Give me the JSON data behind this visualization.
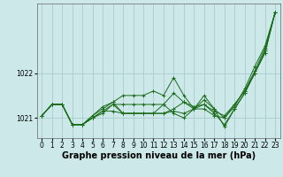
{
  "bg_color": "#cce8e8",
  "grid_color": "#aacccc",
  "line_color": "#1a6b1a",
  "marker_color": "#1a6b1a",
  "xlabel": "Graphe pression niveau de la mer (hPa)",
  "xlabel_fontsize": 7.0,
  "tick_fontsize": 5.5,
  "xlim": [
    -0.5,
    23.5
  ],
  "ylim": [
    1020.55,
    1023.55
  ],
  "yticks": [
    1021,
    1022
  ],
  "xticks": [
    0,
    1,
    2,
    3,
    4,
    5,
    6,
    7,
    8,
    9,
    10,
    11,
    12,
    13,
    14,
    15,
    16,
    17,
    18,
    19,
    20,
    21,
    22,
    23
  ],
  "series": [
    [
      1021.05,
      1021.3,
      1021.3,
      1020.85,
      1020.85,
      1021.0,
      1021.15,
      1021.15,
      1021.1,
      1021.1,
      1021.1,
      1021.1,
      1021.1,
      1021.15,
      1021.1,
      1021.2,
      1021.3,
      1021.15,
      1021.05,
      1021.3,
      1021.6,
      1022.05,
      1022.55,
      1023.35
    ],
    [
      1021.05,
      1021.3,
      1021.3,
      1020.85,
      1020.85,
      1021.05,
      1021.25,
      1021.35,
      1021.5,
      1021.5,
      1021.5,
      1021.6,
      1021.5,
      1021.9,
      1021.5,
      1021.2,
      1021.2,
      1021.05,
      1021.0,
      1021.25,
      1021.65,
      1022.15,
      1022.6,
      1023.35
    ],
    [
      1021.05,
      1021.3,
      1021.3,
      1020.85,
      1020.85,
      1021.05,
      1021.2,
      1021.35,
      1021.1,
      1021.1,
      1021.1,
      1021.1,
      1021.1,
      1021.2,
      1021.35,
      1021.2,
      1021.4,
      1021.2,
      1021.0,
      1021.3,
      1021.6,
      1022.0,
      1022.45,
      1023.35
    ],
    [
      1021.05,
      1021.3,
      1021.3,
      1020.85,
      1020.85,
      1021.0,
      1021.1,
      1021.3,
      1021.3,
      1021.3,
      1021.3,
      1021.3,
      1021.3,
      1021.55,
      1021.35,
      1021.25,
      1021.3,
      1021.1,
      1020.85,
      1021.2,
      1021.55,
      1022.0,
      1022.45,
      1023.35
    ],
    [
      1021.05,
      1021.3,
      1021.3,
      1020.85,
      1020.85,
      1021.0,
      1021.15,
      1021.3,
      1021.1,
      1021.1,
      1021.1,
      1021.1,
      1021.3,
      1021.1,
      1021.0,
      1021.2,
      1021.5,
      1021.2,
      1020.8,
      1021.2,
      1021.55,
      1022.0,
      1022.5,
      1023.35
    ]
  ]
}
